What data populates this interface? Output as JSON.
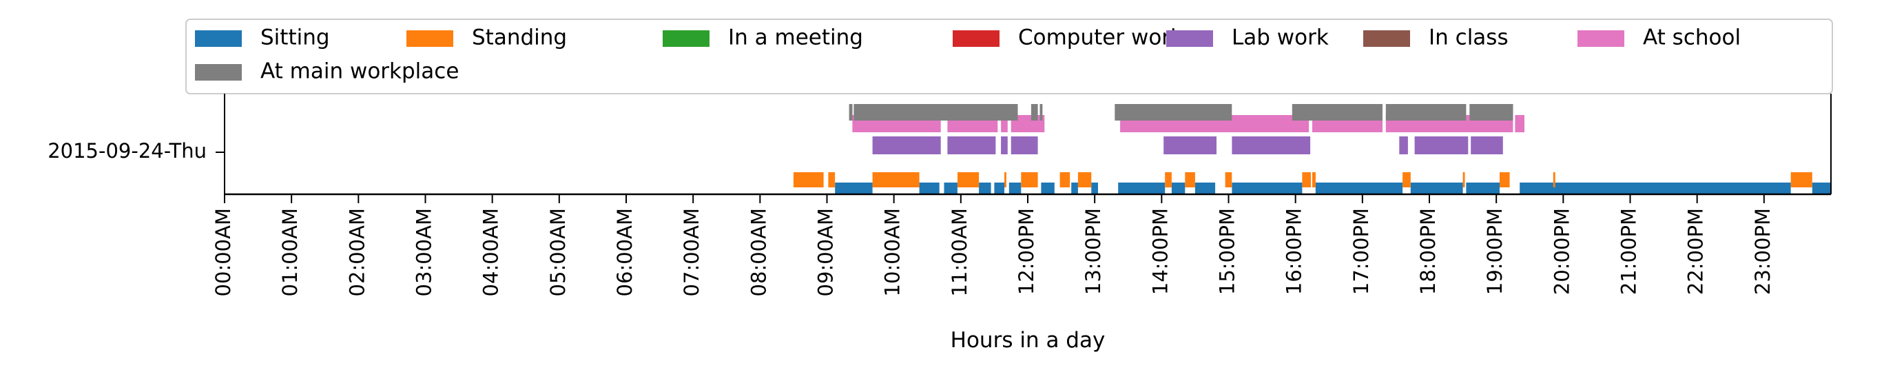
{
  "chart_data": {
    "type": "timeline",
    "title": "",
    "xlabel": "Hours in a day",
    "ylabel": "",
    "xlim": [
      0,
      24
    ],
    "x_unit": "hour of day",
    "y_categories": [
      "2015-09-24-Thu"
    ],
    "x_tick_labels": [
      "00:00AM",
      "01:00AM",
      "02:00AM",
      "03:00AM",
      "04:00AM",
      "05:00AM",
      "06:00AM",
      "07:00AM",
      "08:00AM",
      "09:00AM",
      "10:00AM",
      "11:00AM",
      "12:00PM",
      "13:00PM",
      "14:00PM",
      "15:00PM",
      "16:00PM",
      "17:00PM",
      "18:00PM",
      "19:00PM",
      "20:00PM",
      "21:00PM",
      "22:00PM",
      "23:00PM"
    ],
    "legend_placement": "top",
    "series": [
      {
        "name": "Sitting",
        "color": "#1f77b4",
        "intervals": [
          [
            9.12,
            9.68
          ],
          [
            10.38,
            10.68
          ],
          [
            10.75,
            10.95
          ],
          [
            11.27,
            11.45
          ],
          [
            11.5,
            11.65
          ],
          [
            11.72,
            11.9
          ],
          [
            12.2,
            12.4
          ],
          [
            12.65,
            12.75
          ],
          [
            12.95,
            13.05
          ],
          [
            13.35,
            14.05
          ],
          [
            14.15,
            14.35
          ],
          [
            14.5,
            14.8
          ],
          [
            15.05,
            16.1
          ],
          [
            16.3,
            17.6
          ],
          [
            17.72,
            18.5
          ],
          [
            18.55,
            19.05
          ],
          [
            19.35,
            23.4
          ],
          [
            23.72,
            24.0
          ]
        ]
      },
      {
        "name": "Standing",
        "color": "#ff7f0e",
        "intervals": [
          [
            8.5,
            8.95
          ],
          [
            9.02,
            9.12
          ],
          [
            9.68,
            10.38
          ],
          [
            10.95,
            11.27
          ],
          [
            11.65,
            11.68
          ],
          [
            11.9,
            12.15
          ],
          [
            12.48,
            12.63
          ],
          [
            12.75,
            12.95
          ],
          [
            14.05,
            14.15
          ],
          [
            14.35,
            14.5
          ],
          [
            14.95,
            15.05
          ],
          [
            16.1,
            16.23
          ],
          [
            16.25,
            16.3
          ],
          [
            17.6,
            17.72
          ],
          [
            18.5,
            18.53
          ],
          [
            19.05,
            19.2
          ],
          [
            19.85,
            19.88
          ],
          [
            23.4,
            23.72
          ]
        ]
      },
      {
        "name": "In a meeting",
        "color": "#2ca02c",
        "intervals": []
      },
      {
        "name": "Computer work",
        "color": "#d62728",
        "intervals": []
      },
      {
        "name": "Lab work",
        "color": "#9467bd",
        "intervals": [
          [
            9.68,
            10.7
          ],
          [
            10.8,
            11.52
          ],
          [
            11.6,
            11.7
          ],
          [
            11.75,
            12.15
          ],
          [
            14.03,
            14.82
          ],
          [
            15.05,
            16.22
          ],
          [
            17.55,
            17.68
          ],
          [
            17.78,
            18.58
          ],
          [
            18.62,
            19.1
          ]
        ]
      },
      {
        "name": "In class",
        "color": "#8c564b",
        "intervals": []
      },
      {
        "name": "At school",
        "color": "#e377c2",
        "intervals": [
          [
            9.38,
            10.7
          ],
          [
            10.8,
            11.55
          ],
          [
            11.6,
            11.7
          ],
          [
            11.75,
            12.25
          ],
          [
            13.38,
            16.2
          ],
          [
            16.25,
            17.3
          ],
          [
            17.35,
            19.25
          ],
          [
            19.28,
            19.42
          ]
        ]
      },
      {
        "name": "At main workplace",
        "color": "#7f7f7f",
        "intervals": [
          [
            9.33,
            9.38
          ],
          [
            9.4,
            11.85
          ],
          [
            12.05,
            12.15
          ],
          [
            12.18,
            12.22
          ],
          [
            13.3,
            15.05
          ],
          [
            15.95,
            17.3
          ],
          [
            17.35,
            18.55
          ],
          [
            18.6,
            19.25
          ]
        ]
      }
    ]
  }
}
